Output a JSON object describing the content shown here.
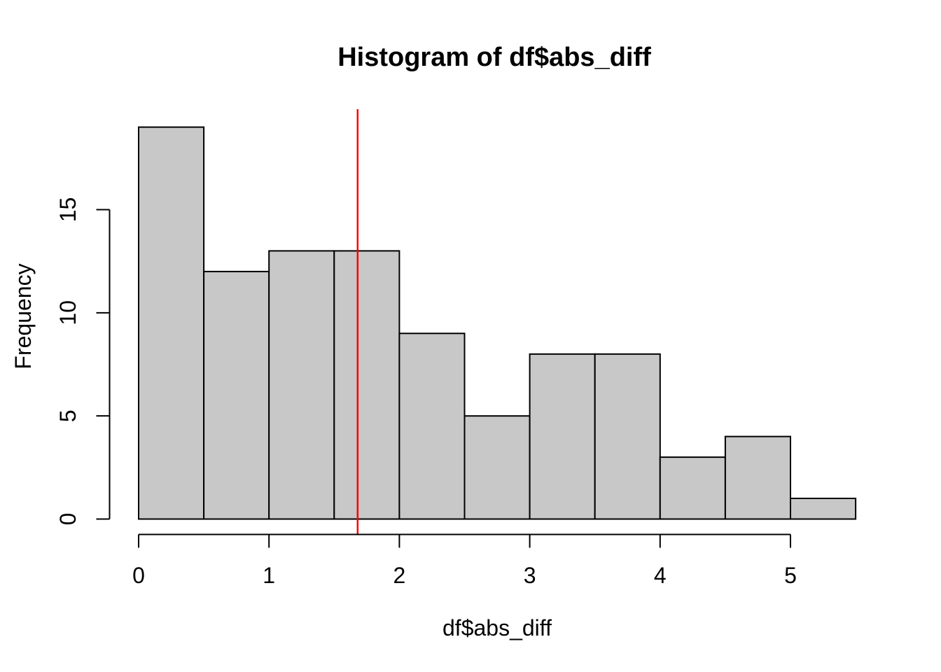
{
  "chart_data": {
    "type": "bar",
    "subtype": "histogram",
    "title": "Histogram of df$abs_diff",
    "xlabel": "df$abs_diff",
    "ylabel": "Frequency",
    "bins": [
      {
        "start": 0.0,
        "end": 0.5,
        "count": 19
      },
      {
        "start": 0.5,
        "end": 1.0,
        "count": 12
      },
      {
        "start": 1.0,
        "end": 1.5,
        "count": 13
      },
      {
        "start": 1.5,
        "end": 2.0,
        "count": 13
      },
      {
        "start": 2.0,
        "end": 2.5,
        "count": 9
      },
      {
        "start": 2.5,
        "end": 3.0,
        "count": 5
      },
      {
        "start": 3.0,
        "end": 3.5,
        "count": 8
      },
      {
        "start": 3.5,
        "end": 4.0,
        "count": 8
      },
      {
        "start": 4.0,
        "end": 4.5,
        "count": 3
      },
      {
        "start": 4.5,
        "end": 5.0,
        "count": 4
      },
      {
        "start": 5.0,
        "end": 5.5,
        "count": 1
      }
    ],
    "x_ticks": [
      0,
      1,
      2,
      3,
      4,
      5
    ],
    "y_ticks": [
      0,
      5,
      10,
      15
    ],
    "xlim": [
      0,
      5.5
    ],
    "ylim": [
      0,
      19
    ],
    "grid": false,
    "legend": null,
    "vline": {
      "x": 1.68,
      "color": "#FF0000"
    },
    "colors": {
      "bar_fill": "#C8C8C8",
      "bar_stroke": "#000000",
      "axis": "#000000",
      "background": "#FFFFFF"
    }
  }
}
